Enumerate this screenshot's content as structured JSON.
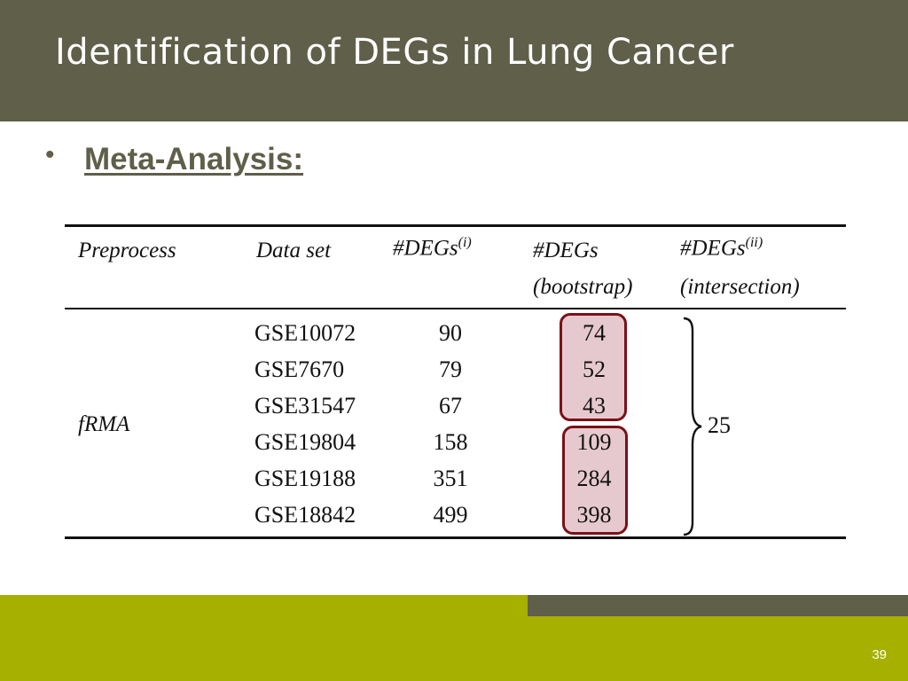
{
  "slide": {
    "title": "Identification of DEGs in Lung Cancer",
    "bullet": "Meta-Analysis:",
    "page_number": "39"
  },
  "table": {
    "headers": {
      "preprocess": "Preprocess",
      "data_set": "Data set",
      "degs": "#DEGs",
      "degs_sup": "(i)",
      "degs_bootstrap_line1": "#DEGs",
      "degs_bootstrap_line2": "(bootstrap)",
      "degs_intersection_line1": "#DEGs",
      "degs_intersection_sup": "(ii)",
      "degs_intersection_line2": "(intersection)"
    },
    "preprocess_value": "fRMA",
    "intersection_value": "25",
    "rows": [
      {
        "data_set": "GSE10072",
        "degs": "90",
        "bootstrap": "74"
      },
      {
        "data_set": "GSE7670",
        "degs": "79",
        "bootstrap": "52"
      },
      {
        "data_set": "GSE31547",
        "degs": "67",
        "bootstrap": "43"
      },
      {
        "data_set": "GSE19804",
        "degs": "158",
        "bootstrap": "109"
      },
      {
        "data_set": "GSE19188",
        "degs": "351",
        "bootstrap": "284"
      },
      {
        "data_set": "GSE18842",
        "degs": "499",
        "bootstrap": "398"
      }
    ]
  },
  "colors": {
    "header_bg": "#5f5f4a",
    "footer_bg": "#a6b000",
    "highlight_border": "#7a1018",
    "highlight_fill": "#e6c9cf"
  }
}
